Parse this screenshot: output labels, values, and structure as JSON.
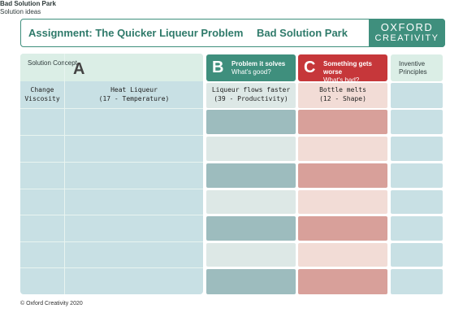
{
  "header": {
    "title": "Assignment: The Quicker Liqueur Problem",
    "subtitle": "Bad Solution Park",
    "logo_line1": "OXFORD",
    "logo_line2": "CREATIVITY"
  },
  "columns": {
    "solution_concept": "Solution Concept",
    "a_letter": "A",
    "a_title": "Bad Solution Park",
    "a_sub": "Solution ideas",
    "b_letter": "B",
    "b_title": "Problem it solves",
    "b_sub": "What's good?",
    "c_letter": "C",
    "c_title": "Something gets worse",
    "c_sub": "What's bad?",
    "inventive_principles": "Inventive Principles"
  },
  "row1": {
    "concept_l1": "Change",
    "concept_l2": "Viscosity",
    "idea_l1": "Heat Liqueur",
    "idea_l2": "(17 - Temperature)",
    "good_l1": "Liqueur flows faster",
    "good_l2": "(39 - Productivity)",
    "bad_l1": "Bottle melts",
    "bad_l2": "(12 - Shape)"
  },
  "footer": "© Oxford Creativity 2020",
  "colors": {
    "teal": "#3f8f7d",
    "red": "#c6373a",
    "panel": "#c8e0e4"
  }
}
